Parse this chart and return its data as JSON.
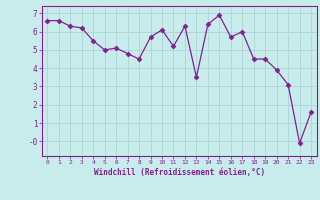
{
  "x": [
    0,
    1,
    2,
    3,
    4,
    5,
    6,
    7,
    8,
    9,
    10,
    11,
    12,
    13,
    14,
    15,
    16,
    17,
    18,
    19,
    20,
    21,
    22,
    23
  ],
  "y": [
    6.6,
    6.6,
    6.3,
    6.2,
    5.5,
    5.0,
    5.1,
    4.8,
    4.5,
    5.7,
    6.1,
    5.2,
    6.3,
    3.5,
    6.4,
    6.9,
    5.7,
    6.0,
    4.5,
    4.5,
    3.9,
    3.1,
    -0.1,
    1.6
  ],
  "line_color": "#822090",
  "marker": "D",
  "markersize": 2.5,
  "linewidth": 0.9,
  "bg_color": "#c8ecec",
  "grid_color": "#b0d8d8",
  "xlabel": "Windchill (Refroidissement éolien,°C)",
  "xlabel_color": "#822090",
  "tick_color": "#822090",
  "ylim": [
    -0.8,
    7.4
  ],
  "xlim": [
    -0.5,
    23.5
  ],
  "yticks": [
    0,
    1,
    2,
    3,
    4,
    5,
    6,
    7
  ],
  "ytick_labels": [
    "-0",
    "1",
    "2",
    "3",
    "4",
    "5",
    "6",
    "7"
  ],
  "xticks": [
    0,
    1,
    2,
    3,
    4,
    5,
    6,
    7,
    8,
    9,
    10,
    11,
    12,
    13,
    14,
    15,
    16,
    17,
    18,
    19,
    20,
    21,
    22,
    23
  ]
}
